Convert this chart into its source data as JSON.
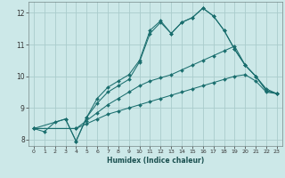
{
  "xlabel": "Humidex (Indice chaleur)",
  "bg_color": "#cce8e8",
  "line_color": "#1a6e6e",
  "grid_color": "#aacccc",
  "xlim": [
    -0.5,
    23.5
  ],
  "ylim": [
    7.8,
    12.35
  ],
  "xticks": [
    0,
    1,
    2,
    3,
    4,
    5,
    6,
    7,
    8,
    9,
    10,
    11,
    12,
    13,
    14,
    15,
    16,
    17,
    18,
    19,
    20,
    21,
    22,
    23
  ],
  "yticks": [
    8,
    9,
    10,
    11,
    12
  ],
  "lines": [
    {
      "x": [
        0,
        1,
        2,
        3,
        4,
        5,
        6,
        7,
        8,
        9,
        10,
        11,
        12,
        13,
        14,
        15,
        16,
        17,
        18,
        19,
        20,
        21,
        22,
        23
      ],
      "y": [
        8.35,
        8.25,
        8.55,
        8.65,
        7.95,
        8.7,
        9.15,
        9.5,
        9.7,
        9.9,
        10.45,
        11.35,
        11.7,
        11.35,
        11.7,
        11.85,
        12.15,
        11.9,
        11.45,
        10.85,
        10.35,
        10.0,
        9.55,
        9.45
      ]
    },
    {
      "x": [
        0,
        4,
        5,
        6,
        7,
        8,
        9,
        10,
        11,
        12,
        13,
        14,
        15,
        16,
        17,
        18,
        19,
        20,
        21,
        22,
        23
      ],
      "y": [
        8.35,
        8.35,
        8.6,
        8.85,
        9.1,
        9.3,
        9.5,
        9.7,
        9.85,
        9.95,
        10.05,
        10.2,
        10.35,
        10.5,
        10.65,
        10.8,
        10.95,
        10.35,
        10.0,
        9.6,
        9.45
      ]
    },
    {
      "x": [
        0,
        4,
        5,
        6,
        7,
        8,
        9,
        10,
        11,
        12,
        13,
        14,
        15,
        16,
        17,
        18,
        19,
        20,
        21,
        22,
        23
      ],
      "y": [
        8.35,
        8.35,
        8.5,
        8.65,
        8.8,
        8.9,
        9.0,
        9.1,
        9.2,
        9.3,
        9.4,
        9.5,
        9.6,
        9.7,
        9.8,
        9.9,
        10.0,
        10.05,
        9.85,
        9.5,
        9.45
      ]
    },
    {
      "x": [
        0,
        3,
        4,
        5,
        6,
        7,
        8,
        9,
        10,
        11,
        12,
        13,
        14,
        15,
        16,
        17,
        18,
        19,
        20,
        21,
        22,
        23
      ],
      "y": [
        8.35,
        8.65,
        7.95,
        8.7,
        9.3,
        9.65,
        9.85,
        10.05,
        10.5,
        11.45,
        11.75,
        11.35,
        11.7,
        11.85,
        12.15,
        11.9,
        11.45,
        10.85,
        10.35,
        10.0,
        9.55,
        9.45
      ]
    }
  ]
}
